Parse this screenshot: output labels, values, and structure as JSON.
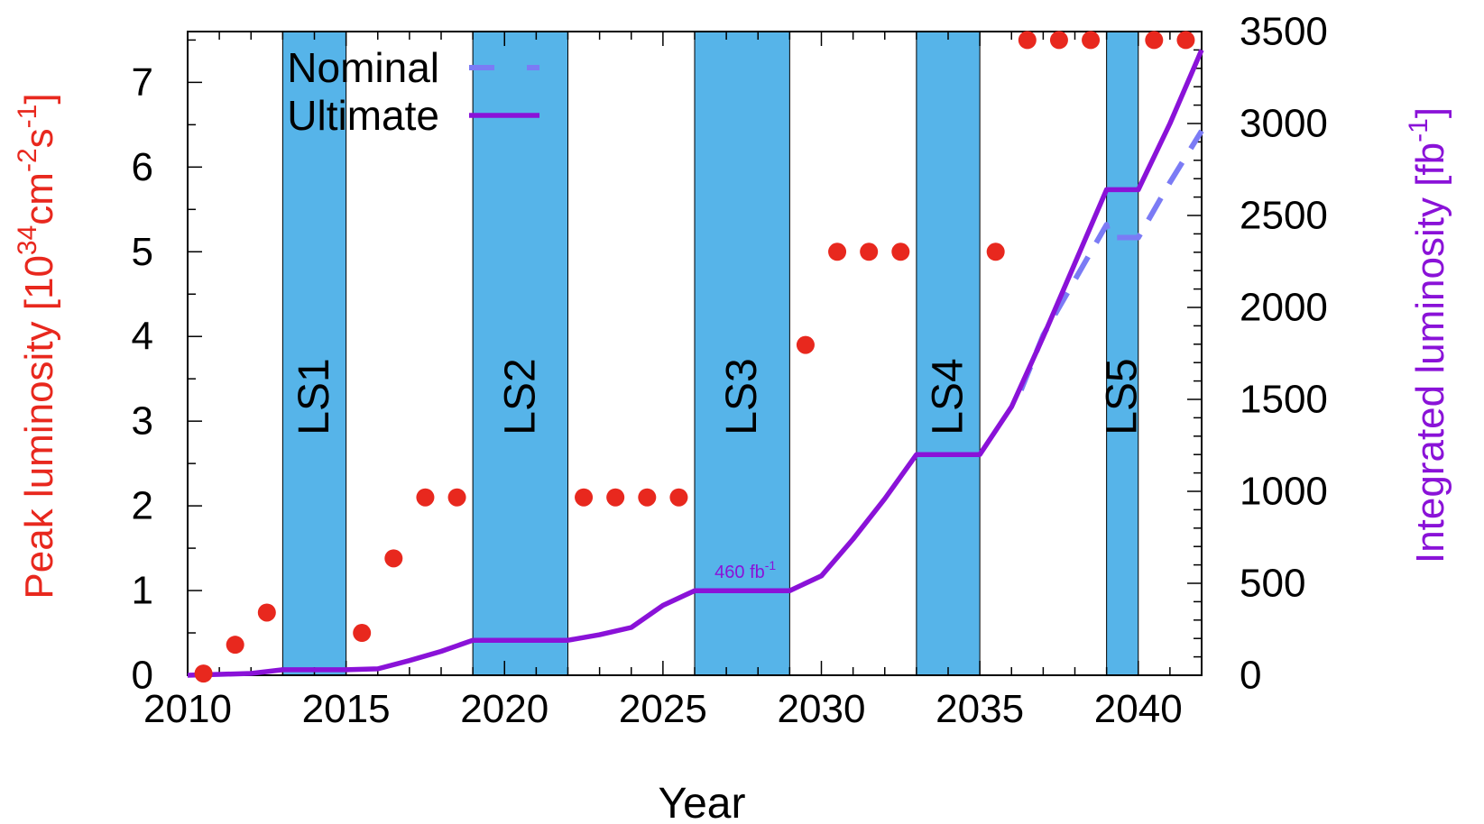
{
  "chart_data": {
    "type": "line",
    "xlabel": "Year",
    "xlim": [
      2010,
      2042
    ],
    "x_ticks": [
      "2010",
      "2015",
      "2020",
      "2025",
      "2030",
      "2035",
      "2040"
    ],
    "y_left": {
      "label_main": "Peak luminosity [10",
      "label_sup1": "34",
      "label_mid": "cm",
      "label_sup2": "-2",
      "label_mid2": "s",
      "label_sup3": "-1",
      "label_end": "]",
      "lim": [
        0,
        7.6
      ],
      "ticks": [
        "0",
        "1",
        "2",
        "3",
        "4",
        "5",
        "6",
        "7"
      ],
      "color": "#e8281e"
    },
    "y_right": {
      "label_main": "Integrated luminosity [fb",
      "label_sup": "-1",
      "label_end": "]",
      "lim": [
        0,
        3500
      ],
      "ticks": [
        "0",
        "500",
        "1000",
        "1500",
        "2000",
        "2500",
        "3000",
        "3500"
      ],
      "color": "#8a12d8"
    },
    "shutdowns": [
      {
        "label": "LS1",
        "start": 2013,
        "end": 2015
      },
      {
        "label": "LS2",
        "start": 2019,
        "end": 2022
      },
      {
        "label": "LS3",
        "start": 2026,
        "end": 2029
      },
      {
        "label": "LS4",
        "start": 2033,
        "end": 2035
      },
      {
        "label": "LS5",
        "start": 2039,
        "end": 2040
      }
    ],
    "shutdown_color": "#56b4e9",
    "peak_points": [
      {
        "x": 2010.5,
        "y": 0.02
      },
      {
        "x": 2011.5,
        "y": 0.36
      },
      {
        "x": 2012.5,
        "y": 0.74
      },
      {
        "x": 2015.5,
        "y": 0.5
      },
      {
        "x": 2016.5,
        "y": 1.38
      },
      {
        "x": 2017.5,
        "y": 2.1
      },
      {
        "x": 2018.5,
        "y": 2.1
      },
      {
        "x": 2022.5,
        "y": 2.1
      },
      {
        "x": 2023.5,
        "y": 2.1
      },
      {
        "x": 2024.5,
        "y": 2.1
      },
      {
        "x": 2025.5,
        "y": 2.1
      },
      {
        "x": 2029.5,
        "y": 3.9
      },
      {
        "x": 2030.5,
        "y": 5.0
      },
      {
        "x": 2031.5,
        "y": 5.0
      },
      {
        "x": 2032.5,
        "y": 5.0
      },
      {
        "x": 2035.5,
        "y": 5.0
      },
      {
        "x": 2036.5,
        "y": 7.5
      },
      {
        "x": 2037.5,
        "y": 7.5
      },
      {
        "x": 2038.5,
        "y": 7.5
      },
      {
        "x": 2040.5,
        "y": 7.5
      },
      {
        "x": 2041.5,
        "y": 7.5
      }
    ],
    "series": [
      {
        "name": "Nominal",
        "style": "dashed",
        "color": "#7b7bf5",
        "x": [
          2036.3,
          2037,
          2038,
          2039,
          2039.1,
          2040,
          2041,
          2042
        ],
        "y": [
          1550,
          1850,
          2150,
          2450,
          2380,
          2380,
          2680,
          2960
        ]
      },
      {
        "name": "Ultimate",
        "style": "solid",
        "color": "#8a12d8",
        "x": [
          2010,
          2011,
          2012,
          2013,
          2015,
          2016,
          2017,
          2018,
          2019,
          2022,
          2023,
          2024,
          2025,
          2026,
          2029,
          2030,
          2031,
          2032,
          2033,
          2035,
          2036,
          2037,
          2038,
          2039,
          2040,
          2041,
          2042
        ],
        "y": [
          0,
          5,
          10,
          30,
          30,
          35,
          80,
          130,
          190,
          190,
          220,
          260,
          380,
          460,
          460,
          540,
          740,
          960,
          1200,
          1200,
          1460,
          1840,
          2240,
          2640,
          2640,
          3000,
          3400
        ]
      }
    ],
    "annotation": {
      "text": "460 fb",
      "sup": "-1",
      "x": 2027.6,
      "y": 460
    },
    "legend_position": "top-left"
  }
}
